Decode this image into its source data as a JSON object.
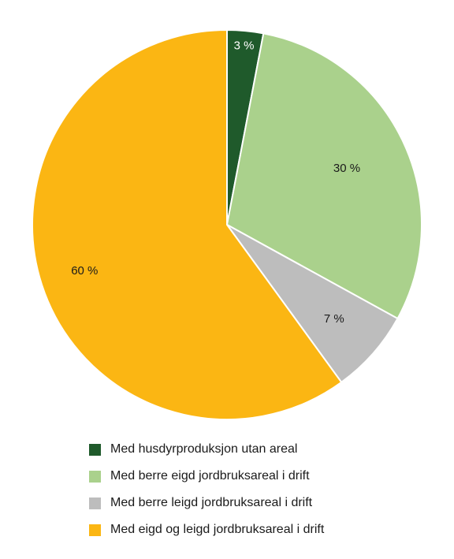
{
  "chart_data": {
    "type": "pie",
    "title": "",
    "slices": [
      {
        "name": "Med husdyrproduksjon utan areal",
        "value": 3,
        "label": "3 %",
        "color": "#1f5a2b",
        "label_color": "#ffffff"
      },
      {
        "name": "Med berre eigd jordbruksareal i drift",
        "value": 30,
        "label": "30 %",
        "color": "#aad18c",
        "label_color": "#1a1a1a"
      },
      {
        "name": "Med berre leigd jordbruksareal i drift",
        "value": 7,
        "label": "7 %",
        "color": "#bdbdbd",
        "label_color": "#1a1a1a"
      },
      {
        "name": "Med eigd og leigd jordbruksareal i drift",
        "value": 60,
        "label": "60 %",
        "color": "#fbb613",
        "label_color": "#1a1a1a"
      }
    ],
    "start_angle": "12 o'clock",
    "direction": "clockwise",
    "legend_position": "bottom"
  }
}
